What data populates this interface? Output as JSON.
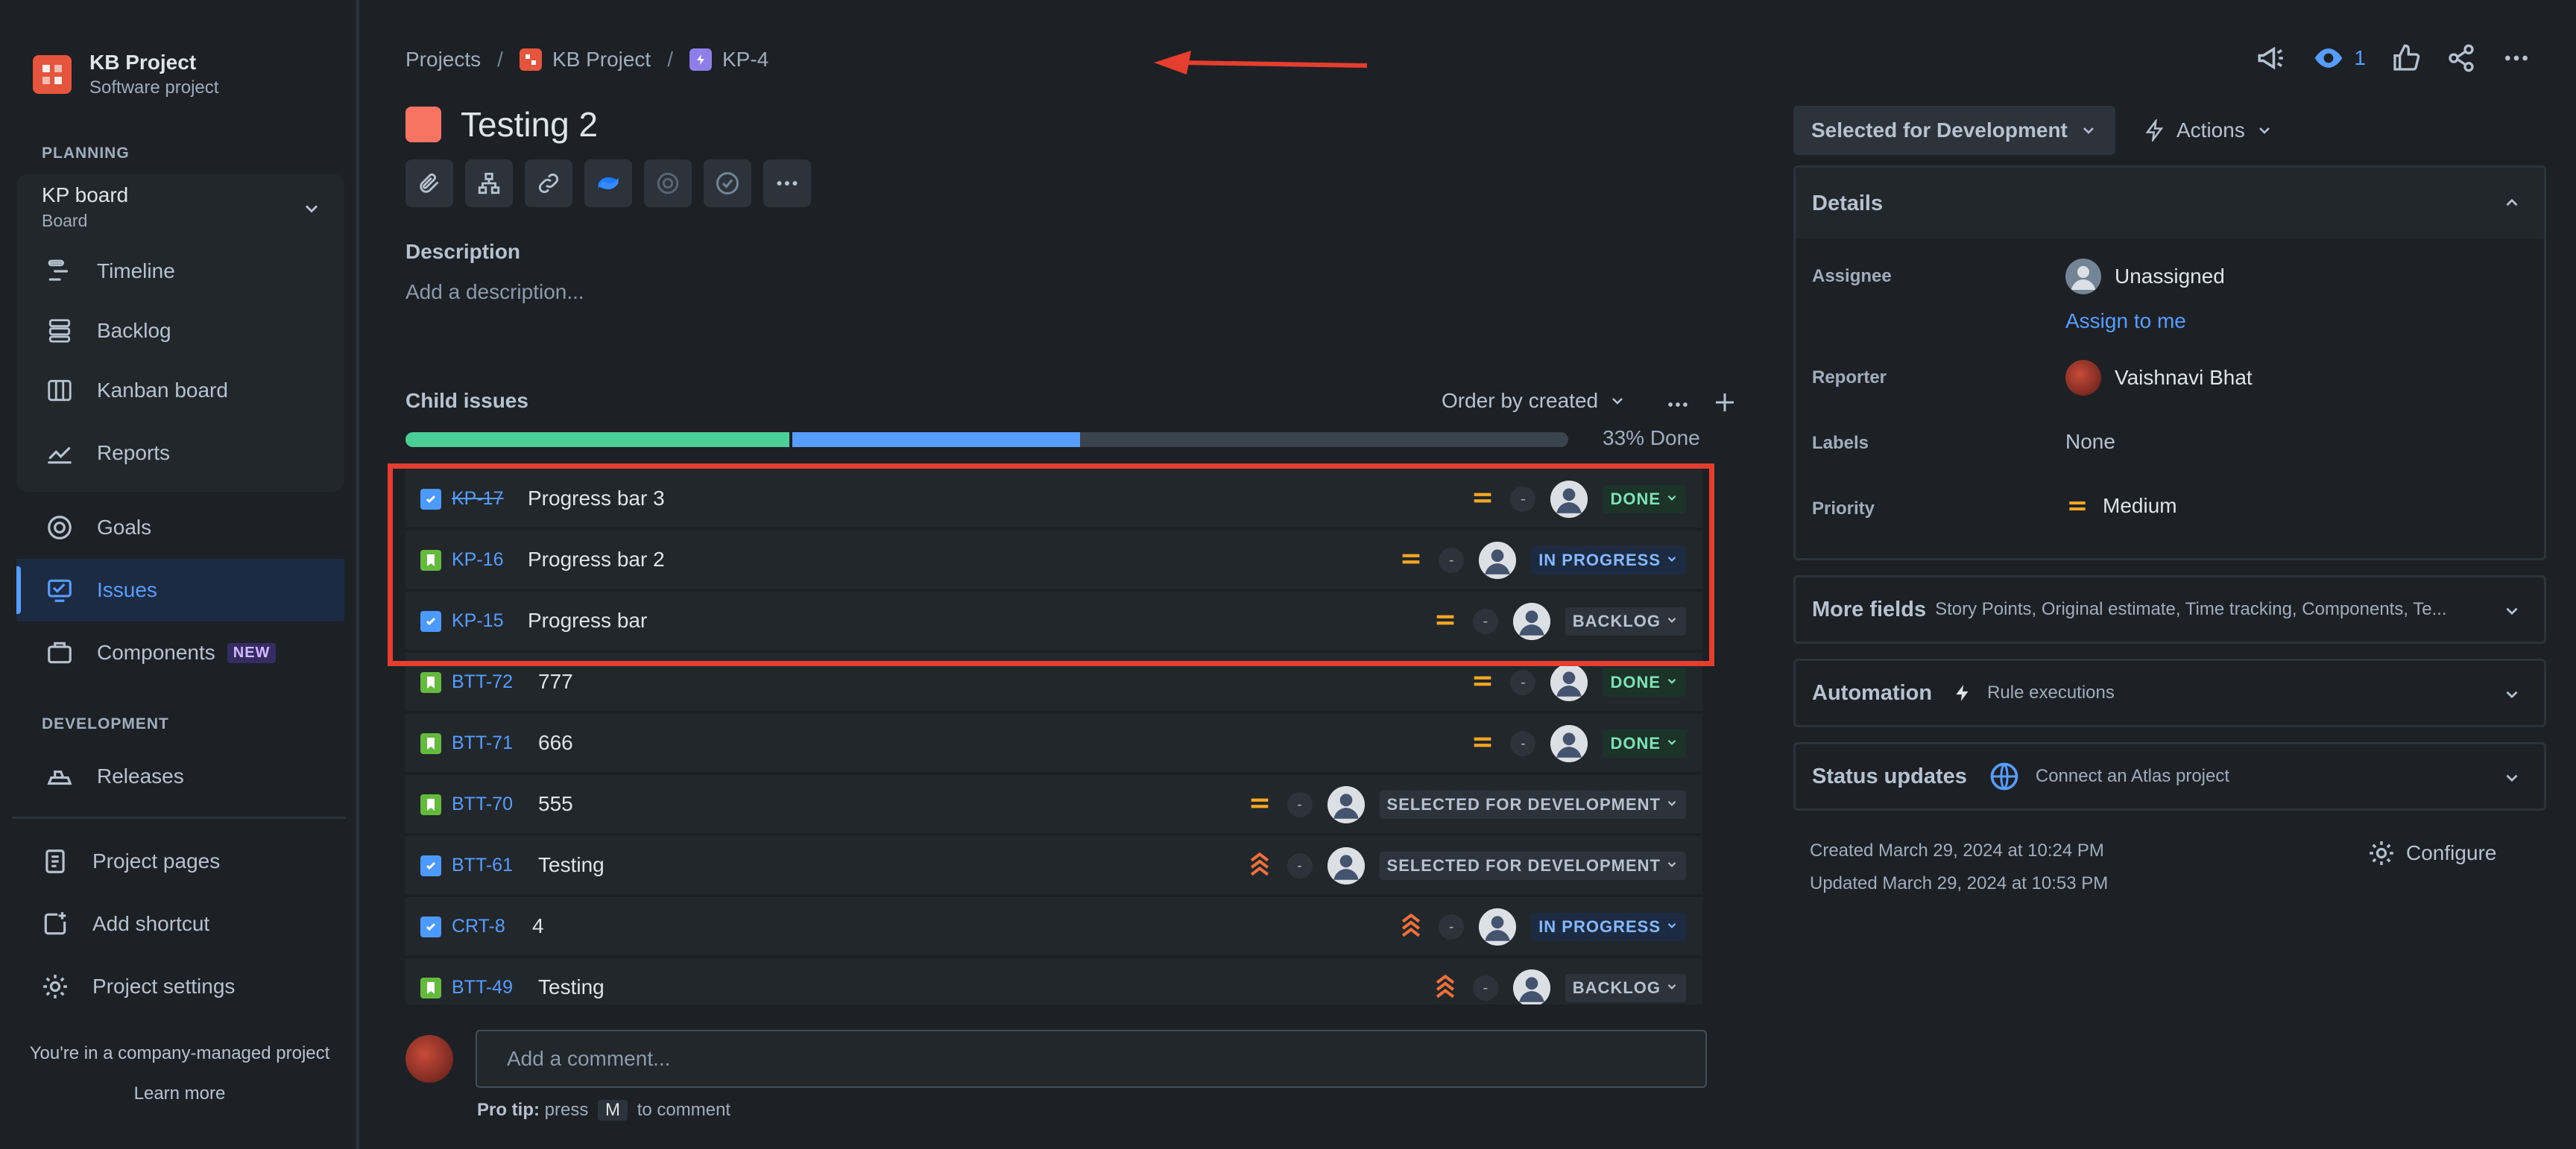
{
  "project": {
    "name": "KB Project",
    "type": "Software project"
  },
  "sidebar": {
    "planning_label": "PLANNING",
    "board": {
      "name": "KP board",
      "type": "Board"
    },
    "board_items": [
      {
        "label": "Timeline",
        "icon": "timeline-icon"
      },
      {
        "label": "Backlog",
        "icon": "backlog-icon"
      },
      {
        "label": "Kanban board",
        "icon": "kanban-board-icon"
      },
      {
        "label": "Reports",
        "icon": "reports-icon"
      }
    ],
    "goals": "Goals",
    "issues": "Issues",
    "components": "Components",
    "new_badge": "NEW",
    "development_label": "DEVELOPMENT",
    "releases": "Releases",
    "project_pages": "Project pages",
    "add_shortcut": "Add shortcut",
    "project_settings": "Project settings",
    "footer_text": "You're in a company-managed project",
    "learn_more": "Learn more"
  },
  "breadcrumb": {
    "projects": "Projects",
    "project": "KB Project",
    "issue_key": "KP-4"
  },
  "issue": {
    "title": "Testing 2",
    "description_label": "Description",
    "description_placeholder": "Add a description..."
  },
  "child_issues": {
    "label": "Child issues",
    "order_by": "Order by created",
    "progress": {
      "done_fraction": 0.33,
      "in_progress_fraction": 0.25
    },
    "progress_label": "33% Done",
    "rows": [
      {
        "key": "KP-17",
        "summary": "Progress bar 3",
        "status": "DONE",
        "type": "task",
        "priority": "medium",
        "strike": true
      },
      {
        "key": "KP-16",
        "summary": "Progress bar 2",
        "status": "IN PROGRESS",
        "type": "story",
        "priority": "medium",
        "strike": false
      },
      {
        "key": "KP-15",
        "summary": "Progress bar",
        "status": "BACKLOG",
        "type": "task",
        "priority": "medium",
        "strike": false
      },
      {
        "key": "BTT-72",
        "summary": "777",
        "status": "DONE",
        "type": "story",
        "priority": "medium",
        "strike": false
      },
      {
        "key": "BTT-71",
        "summary": "666",
        "status": "DONE",
        "type": "story",
        "priority": "medium",
        "strike": false
      },
      {
        "key": "BTT-70",
        "summary": "555",
        "status": "SELECTED FOR DEVELOPMENT",
        "type": "story",
        "priority": "medium",
        "strike": false
      },
      {
        "key": "BTT-61",
        "summary": "Testing",
        "status": "SELECTED FOR DEVELOPMENT",
        "type": "task",
        "priority": "highest",
        "strike": false
      },
      {
        "key": "CRT-8",
        "summary": "4",
        "status": "IN PROGRESS",
        "type": "task",
        "priority": "highest",
        "strike": false
      },
      {
        "key": "BTT-49",
        "summary": "Testing",
        "status": "BACKLOG",
        "type": "story",
        "priority": "highest",
        "strike": false
      }
    ],
    "dash": "-"
  },
  "comment": {
    "placeholder": "Add a comment...",
    "protip_prefix": "Pro tip:",
    "protip_press": "press",
    "protip_key": "M",
    "protip_suffix": "to comment"
  },
  "topbar": {
    "watch_count": "1"
  },
  "right_panel": {
    "status": "Selected for Development",
    "actions": "Actions",
    "details_label": "Details",
    "assignee_label": "Assignee",
    "assignee": "Unassigned",
    "assign_to_me": "Assign to me",
    "reporter_label": "Reporter",
    "reporter": "Vaishnavi Bhat",
    "labels_label": "Labels",
    "labels": "None",
    "priority_label": "Priority",
    "priority": "Medium",
    "more_fields": "More fields",
    "more_fields_sub": "Story Points, Original estimate, Time tracking, Components, Te...",
    "automation": "Automation",
    "automation_sub": "Rule executions",
    "status_updates": "Status updates",
    "status_updates_sub": "Connect an Atlas project",
    "created": "Created March 29, 2024 at 10:24 PM",
    "updated": "Updated March 29, 2024 at 10:53 PM",
    "configure": "Configure"
  },
  "colors": {
    "accent": "#579dff",
    "done": "#4bce97",
    "annotation_red": "#e53e2e",
    "priority_medium": "#f5a623",
    "priority_high": "#f0703c"
  }
}
